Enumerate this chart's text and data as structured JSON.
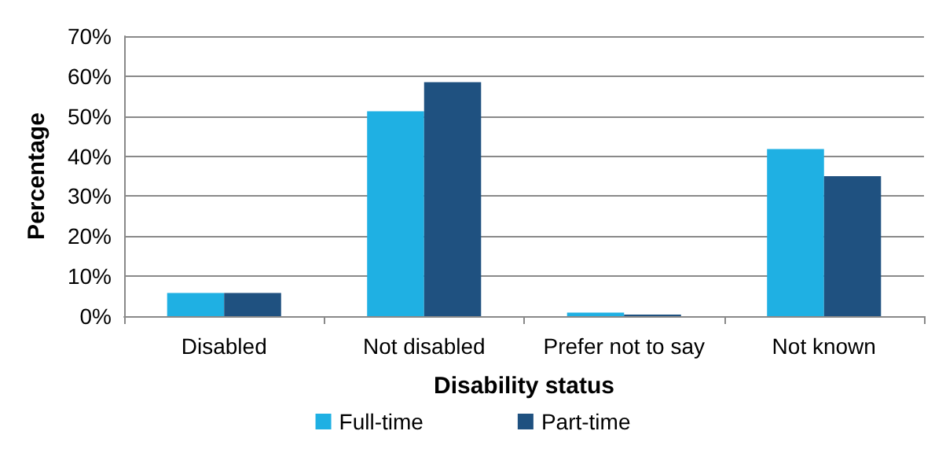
{
  "chart_data": {
    "type": "bar",
    "xlabel": "Disability status",
    "ylabel": "Percentage",
    "categories": [
      "Disabled",
      "Not disabled",
      "Prefer not to say",
      "Not known"
    ],
    "series": [
      {
        "name": "Full-time",
        "color": "#1fb0e3",
        "values": [
          5.8,
          51.2,
          0.9,
          41.8
        ]
      },
      {
        "name": "Part-time",
        "color": "#1f5180",
        "values": [
          5.8,
          58.5,
          0.4,
          35.0
        ]
      }
    ],
    "ylim": [
      0,
      70
    ],
    "yticks": [
      {
        "value": 0,
        "label": "0%"
      },
      {
        "value": 10,
        "label": "10%"
      },
      {
        "value": 20,
        "label": "20%"
      },
      {
        "value": 30,
        "label": "30%"
      },
      {
        "value": 40,
        "label": "40%"
      },
      {
        "value": 50,
        "label": "50%"
      },
      {
        "value": 60,
        "label": "60%"
      },
      {
        "value": 70,
        "label": "70%"
      }
    ],
    "grid": "y",
    "legend": "bottom"
  }
}
